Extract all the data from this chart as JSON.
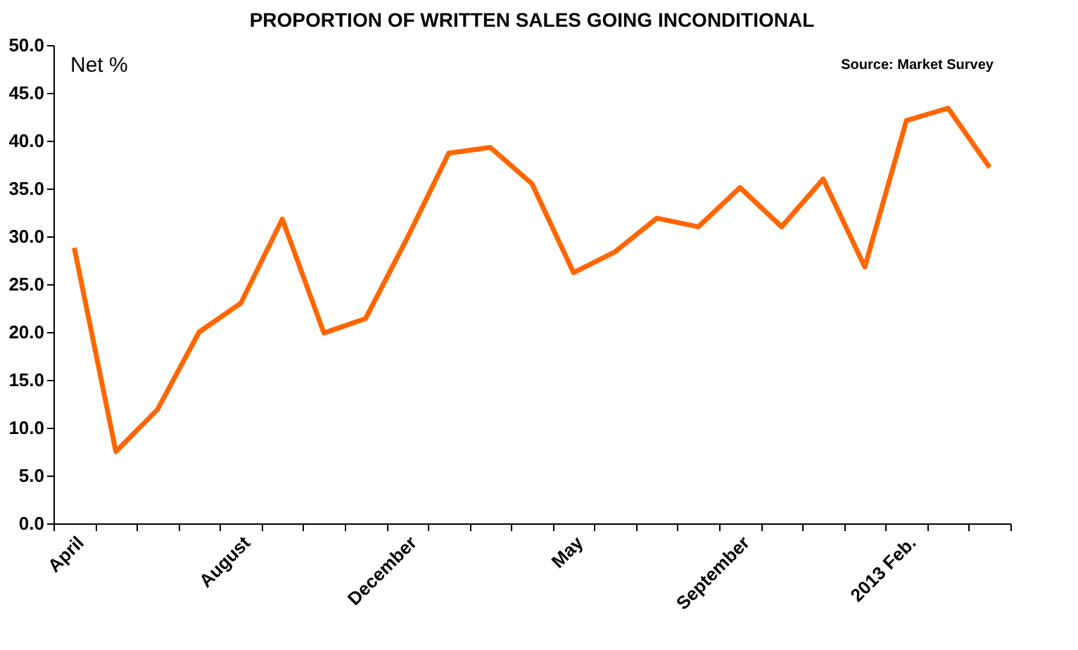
{
  "chart_data": {
    "type": "line",
    "title": "PROPORTION OF WRITTEN SALES GOING INCONDITIONAL",
    "categories": [
      "April",
      null,
      null,
      null,
      "August",
      null,
      null,
      null,
      "December",
      null,
      null,
      null,
      "May",
      null,
      null,
      null,
      "September",
      null,
      null,
      null,
      "2013 Feb.",
      null,
      null
    ],
    "series": [
      {
        "color": "#ff6600",
        "values": [
          28.8,
          7.5,
          11.9,
          20.0,
          23.0,
          31.8,
          19.9,
          21.4,
          29.8,
          38.7,
          39.3,
          35.5,
          26.2,
          28.4,
          31.9,
          31.0,
          35.1,
          31.0,
          36.0,
          26.8,
          42.1,
          43.4,
          37.2
        ]
      }
    ],
    "ylim": [
      0,
      50
    ],
    "yticks": [
      {
        "value": 0,
        "label": "0.0"
      },
      {
        "value": 5,
        "label": "5.0"
      },
      {
        "value": 10,
        "label": "10.0"
      },
      {
        "value": 15,
        "label": "15.0"
      },
      {
        "value": 20,
        "label": "20.0"
      },
      {
        "value": 25,
        "label": "25.0"
      },
      {
        "value": 30,
        "label": "30.0"
      },
      {
        "value": 35,
        "label": "35.0"
      },
      {
        "value": 40,
        "label": "40.0"
      },
      {
        "value": 45,
        "label": "45.0"
      },
      {
        "value": 50,
        "label": "50.0"
      }
    ],
    "annotations": [
      "Net %",
      "Source: Market Survey"
    ],
    "grid": false,
    "marker": "none",
    "line_style": "solid"
  }
}
